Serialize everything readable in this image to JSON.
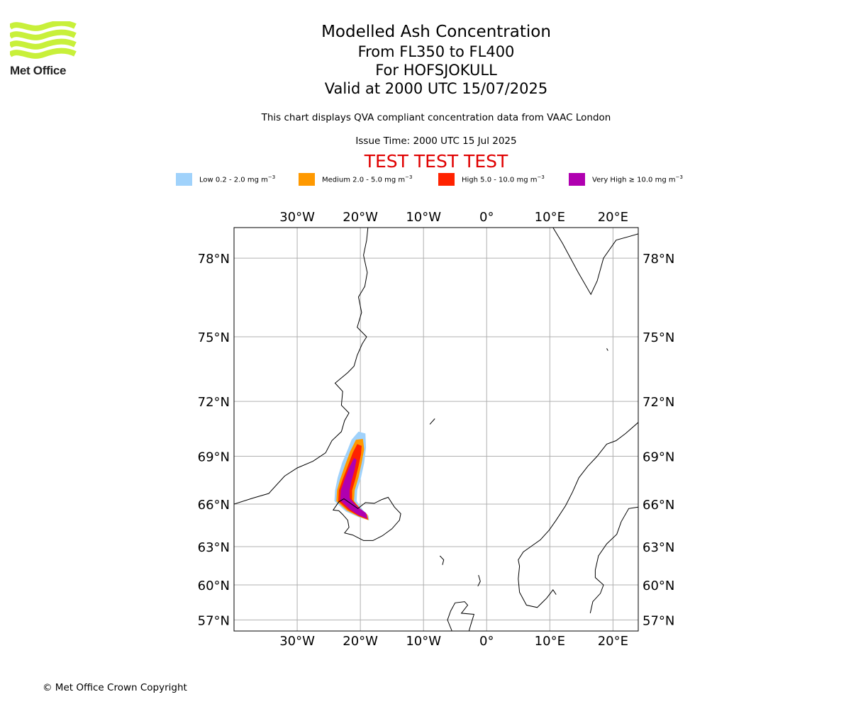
{
  "header": {
    "title": "Modelled Ash Concentration",
    "levels": "From FL350 to FL400",
    "volcano": "For HOFSJOKULL",
    "valid": "Valid at 2000 UTC 15/07/2025",
    "note": "This chart displays QVA compliant concentration data from VAAC London",
    "issue_time": "Issue Time: 2000 UTC 15 Jul 2025",
    "test_banner": "TEST TEST TEST"
  },
  "logo": {
    "text": "Met Office",
    "color": "#c8f03a",
    "icon": "met-office-wave-logo"
  },
  "legend": [
    {
      "label": "Low 0.2 - 2.0 mg m",
      "color": "#a0d2fb"
    },
    {
      "label": "Medium 2.0 - 5.0 mg m",
      "color": "#ff9900"
    },
    {
      "label": "High 5.0 - 10.0 mg m",
      "color": "#ff2200"
    },
    {
      "label": "Very High  ≥  10.0 mg m",
      "color": "#b000b0"
    }
  ],
  "legend_unit_exponent": "−3",
  "map": {
    "lon_range": [
      -40,
      24
    ],
    "lat_range": [
      56,
      79
    ],
    "lon_ticks": [
      {
        "value": -30,
        "label": "30°W"
      },
      {
        "value": -20,
        "label": "20°W"
      },
      {
        "value": -10,
        "label": "10°W"
      },
      {
        "value": 0,
        "label": "0°"
      },
      {
        "value": 10,
        "label": "10°E"
      },
      {
        "value": 20,
        "label": "20°E"
      }
    ],
    "lat_ticks": [
      {
        "value": 78,
        "label": "78°N"
      },
      {
        "value": 75,
        "label": "75°N"
      },
      {
        "value": 72,
        "label": "72°N"
      },
      {
        "value": 69,
        "label": "69°N"
      },
      {
        "value": 66,
        "label": "66°N"
      },
      {
        "value": 63,
        "label": "63°N"
      },
      {
        "value": 60,
        "label": "60°N"
      },
      {
        "value": 57,
        "label": "57°N"
      }
    ],
    "grid": true,
    "plume_levels": [
      {
        "level": "Low",
        "color": "#a0d2fb",
        "polygon": [
          [
            -18.6,
            64.9
          ],
          [
            -20.2,
            65.1
          ],
          [
            -22.3,
            65.5
          ],
          [
            -24.1,
            66.2
          ],
          [
            -24.0,
            66.9
          ],
          [
            -23.6,
            67.7
          ],
          [
            -22.9,
            68.6
          ],
          [
            -22.1,
            69.3
          ],
          [
            -21.4,
            69.95
          ],
          [
            -20.3,
            70.4
          ],
          [
            -19.2,
            70.3
          ],
          [
            -19.1,
            69.5
          ],
          [
            -19.4,
            68.6
          ],
          [
            -19.9,
            67.7
          ],
          [
            -20.5,
            66.9
          ],
          [
            -20.6,
            66.2
          ],
          [
            -19.6,
            65.6
          ],
          [
            -18.7,
            65.2
          ]
        ]
      },
      {
        "level": "Medium",
        "color": "#ff9900",
        "polygon": [
          [
            -18.7,
            64.9
          ],
          [
            -20.2,
            65.15
          ],
          [
            -22.1,
            65.55
          ],
          [
            -23.8,
            66.2
          ],
          [
            -23.7,
            66.9
          ],
          [
            -23.2,
            67.6
          ],
          [
            -22.4,
            68.5
          ],
          [
            -21.6,
            69.3
          ],
          [
            -20.7,
            69.95
          ],
          [
            -19.6,
            70.0
          ],
          [
            -19.4,
            69.4
          ],
          [
            -19.8,
            68.6
          ],
          [
            -20.3,
            67.7
          ],
          [
            -20.9,
            66.9
          ],
          [
            -21.0,
            66.2
          ],
          [
            -19.9,
            65.65
          ],
          [
            -18.9,
            65.3
          ]
        ]
      },
      {
        "level": "High",
        "color": "#ff2200",
        "polygon": [
          [
            -18.8,
            64.95
          ],
          [
            -20.3,
            65.2
          ],
          [
            -21.9,
            65.6
          ],
          [
            -23.5,
            66.2
          ],
          [
            -23.4,
            66.9
          ],
          [
            -22.8,
            67.6
          ],
          [
            -22.0,
            68.4
          ],
          [
            -21.2,
            69.2
          ],
          [
            -20.5,
            69.7
          ],
          [
            -19.8,
            69.6
          ],
          [
            -19.9,
            69.1
          ],
          [
            -20.3,
            68.4
          ],
          [
            -20.8,
            67.6
          ],
          [
            -21.3,
            66.9
          ],
          [
            -21.3,
            66.3
          ],
          [
            -20.1,
            65.7
          ],
          [
            -19.0,
            65.3
          ]
        ]
      },
      {
        "level": "Very High",
        "color": "#b000b0",
        "polygon": [
          [
            -18.9,
            65.0
          ],
          [
            -20.3,
            65.25
          ],
          [
            -21.7,
            65.65
          ],
          [
            -23.2,
            66.25
          ],
          [
            -23.1,
            66.9
          ],
          [
            -22.5,
            67.6
          ],
          [
            -21.8,
            68.3
          ],
          [
            -21.0,
            68.9
          ],
          [
            -20.6,
            68.8
          ],
          [
            -20.9,
            68.2
          ],
          [
            -21.4,
            67.5
          ],
          [
            -21.7,
            66.9
          ],
          [
            -21.7,
            66.4
          ],
          [
            -20.4,
            65.8
          ],
          [
            -19.1,
            65.4
          ]
        ]
      }
    ],
    "coastlines": {
      "greenland": [
        [
          -40,
          66.0
        ],
        [
          -37,
          66.4
        ],
        [
          -34.5,
          66.7
        ],
        [
          -32,
          67.8
        ],
        [
          -30,
          68.3
        ],
        [
          -27.5,
          68.7
        ],
        [
          -25.5,
          69.2
        ],
        [
          -24.5,
          69.9
        ],
        [
          -23,
          70.4
        ],
        [
          -22.5,
          71.0
        ],
        [
          -21.8,
          71.4
        ],
        [
          -23,
          71.8
        ],
        [
          -22.8,
          72.5
        ],
        [
          -24,
          72.9
        ],
        [
          -22,
          73.4
        ],
        [
          -21,
          73.7
        ],
        [
          -20.5,
          74.2
        ],
        [
          -19.7,
          74.7
        ],
        [
          -19,
          75.0
        ],
        [
          -20.5,
          75.4
        ],
        [
          -19.8,
          76.0
        ],
        [
          -20.3,
          76.6
        ],
        [
          -19.3,
          77.0
        ],
        [
          -18.9,
          77.5
        ],
        [
          -19.5,
          78.1
        ],
        [
          -19,
          78.6
        ],
        [
          -18.8,
          79.0
        ]
      ],
      "iceland": [
        [
          -24.3,
          65.6
        ],
        [
          -23.4,
          65.55
        ],
        [
          -22.8,
          65.3
        ],
        [
          -22.0,
          64.9
        ],
        [
          -21.8,
          64.4
        ],
        [
          -22.5,
          64.0
        ],
        [
          -21.2,
          63.85
        ],
        [
          -19.5,
          63.45
        ],
        [
          -18.0,
          63.45
        ],
        [
          -16.5,
          63.8
        ],
        [
          -15.0,
          64.3
        ],
        [
          -13.8,
          64.9
        ],
        [
          -13.6,
          65.35
        ],
        [
          -14.6,
          65.8
        ],
        [
          -15.6,
          66.45
        ],
        [
          -16.6,
          66.3
        ],
        [
          -17.8,
          66.05
        ],
        [
          -19.2,
          66.1
        ],
        [
          -20.4,
          65.7
        ],
        [
          -21.4,
          66.0
        ],
        [
          -22.6,
          66.35
        ],
        [
          -23.4,
          66.15
        ],
        [
          -24.3,
          65.6
        ]
      ],
      "scandinavia": [
        [
          5.2,
          61.5
        ],
        [
          5.0,
          62.0
        ],
        [
          5.8,
          62.6
        ],
        [
          7.0,
          63.0
        ],
        [
          8.5,
          63.5
        ],
        [
          9.9,
          64.2
        ],
        [
          11.0,
          64.9
        ],
        [
          12.5,
          65.9
        ],
        [
          13.6,
          66.8
        ],
        [
          14.6,
          67.7
        ],
        [
          16.0,
          68.4
        ],
        [
          17.5,
          69.0
        ],
        [
          19.0,
          69.7
        ],
        [
          20.5,
          69.9
        ],
        [
          22.0,
          70.3
        ],
        [
          24.0,
          70.9
        ]
      ],
      "norway_south": [
        [
          5.2,
          61.5
        ],
        [
          5.0,
          60.5
        ],
        [
          5.2,
          59.4
        ],
        [
          6.3,
          58.3
        ],
        [
          8.0,
          58.1
        ],
        [
          9.5,
          58.9
        ],
        [
          10.5,
          59.6
        ],
        [
          11.0,
          59.2
        ]
      ],
      "sweden_coast": [
        [
          24.0,
          65.8
        ],
        [
          22.5,
          65.7
        ],
        [
          21.3,
          64.8
        ],
        [
          20.6,
          63.9
        ],
        [
          19.0,
          63.2
        ],
        [
          17.7,
          62.3
        ],
        [
          17.2,
          61.2
        ],
        [
          17.2,
          60.6
        ],
        [
          18.5,
          60.0
        ],
        [
          18.0,
          59.3
        ],
        [
          16.8,
          58.6
        ],
        [
          16.4,
          57.6
        ]
      ],
      "uk_north": [
        [
          -5.5,
          56.0
        ],
        [
          -6.2,
          57.0
        ],
        [
          -5.7,
          57.8
        ],
        [
          -5.0,
          58.5
        ],
        [
          -3.5,
          58.6
        ],
        [
          -3.0,
          58.3
        ],
        [
          -4.0,
          57.6
        ],
        [
          -2.0,
          57.5
        ],
        [
          -2.5,
          56.6
        ],
        [
          -2.8,
          56.0
        ]
      ],
      "svalbard": [
        [
          10.5,
          79.0
        ],
        [
          12.0,
          78.5
        ],
        [
          14.5,
          77.5
        ],
        [
          16.5,
          76.7
        ],
        [
          17.5,
          77.2
        ],
        [
          18.5,
          78.0
        ],
        [
          20.5,
          78.6
        ],
        [
          24,
          78.8
        ]
      ],
      "jan_mayen": [
        [
          -9.0,
          70.8
        ],
        [
          -8.2,
          71.1
        ]
      ],
      "faroe": [
        [
          -7.4,
          62.3
        ],
        [
          -6.8,
          62.0
        ],
        [
          -7.0,
          61.6
        ]
      ],
      "shetland": [
        [
          -1.3,
          60.8
        ],
        [
          -1.0,
          60.3
        ],
        [
          -1.4,
          59.9
        ]
      ],
      "bear_island": [
        [
          19.0,
          74.5
        ],
        [
          19.2,
          74.4
        ]
      ]
    }
  },
  "footer": {
    "copyright": "© Met Office Crown Copyright"
  }
}
